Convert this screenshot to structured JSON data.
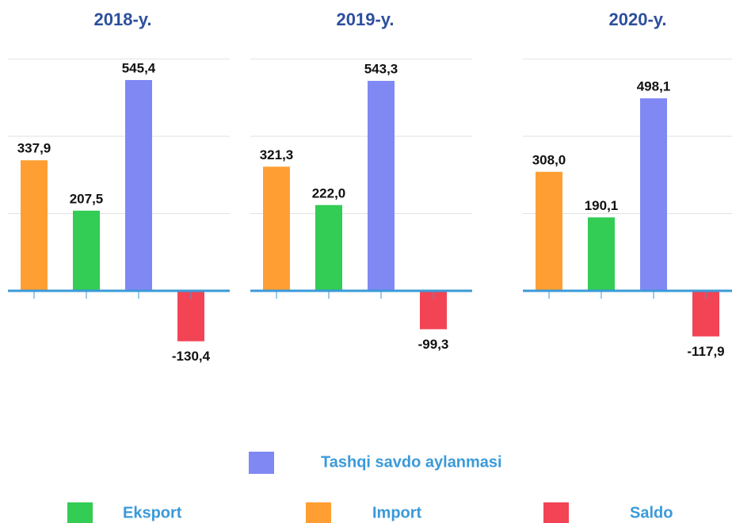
{
  "chart_data": [
    {
      "type": "bar",
      "title": "2018-y.",
      "categories": [
        null,
        null,
        null,
        null
      ],
      "values": [
        337.9,
        207.5,
        545.4,
        -130.4
      ],
      "value_labels": [
        "337,9",
        "207,5",
        "545,4",
        "-130,4"
      ],
      "colors": [
        "#ff9f33",
        "#33cc55",
        "#8088f4",
        "#f24455"
      ],
      "ylim": [
        -250,
        650
      ],
      "yticks": [
        0,
        200,
        400,
        600
      ],
      "grid": true
    },
    {
      "type": "bar",
      "title": "2019-y.",
      "categories": [
        null,
        null,
        null,
        null
      ],
      "values": [
        321.3,
        222.0,
        543.3,
        -99.3
      ],
      "value_labels": [
        "321,3",
        "222,0",
        "543,3",
        "-99,3"
      ],
      "colors": [
        "#ff9f33",
        "#33cc55",
        "#8088f4",
        "#f24455"
      ],
      "ylim": [
        -250,
        650
      ],
      "yticks": [
        0,
        200,
        400,
        600
      ],
      "grid": true
    },
    {
      "type": "bar",
      "title": "2020-y.",
      "categories": [
        null,
        null,
        null,
        null
      ],
      "values": [
        308.0,
        190.1,
        498.1,
        -117.9
      ],
      "value_labels": [
        "308,0",
        "190,1",
        "498,1",
        "-117,9"
      ],
      "colors": [
        "#ff9f33",
        "#33cc55",
        "#8088f4",
        "#f24455"
      ],
      "ylim": [
        -250,
        650
      ],
      "yticks": [
        0,
        200,
        400,
        600
      ],
      "grid": true
    }
  ],
  "legend": [
    {
      "name": "Tashqi savdo aylanmasi",
      "color": "#8088f4"
    },
    {
      "name": "Eksport",
      "color": "#33cc55"
    },
    {
      "name": "Import",
      "color": "#ff9f33"
    },
    {
      "name": "Saldo",
      "color": "#f24455"
    }
  ]
}
